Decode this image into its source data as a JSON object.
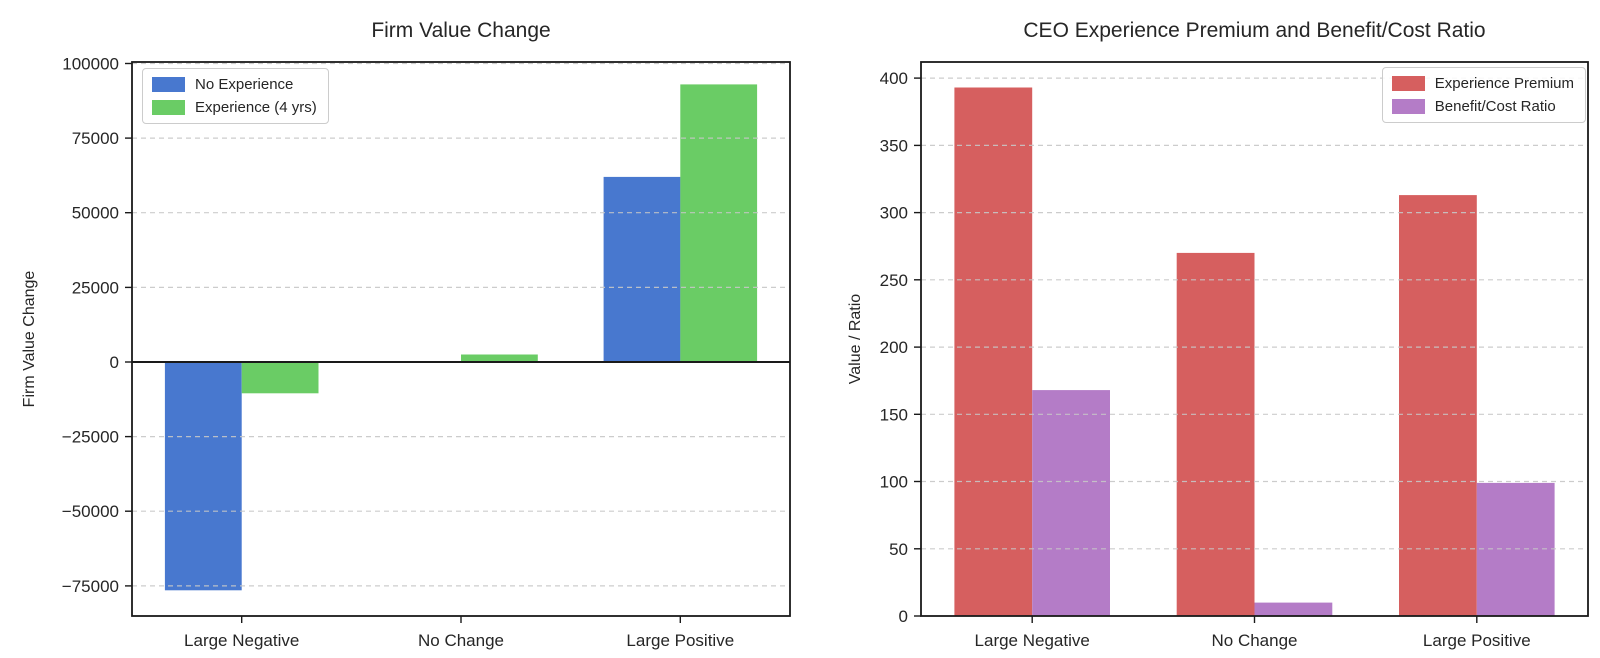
{
  "figure": {
    "background": "#ffffff",
    "text_color": "#262626",
    "spine_color": "#1a1a1a",
    "grid_color": "#c7c7c7"
  },
  "chart_data": [
    {
      "type": "bar",
      "title": "Firm Value Change",
      "xlabel": "",
      "ylabel": "Firm Value Change",
      "categories": [
        "Large Negative",
        "No Change",
        "Large Positive"
      ],
      "series": [
        {
          "name": "No Experience",
          "color": "#4878CF",
          "values": [
            -76500,
            0,
            62000
          ]
        },
        {
          "name": "Experience (4 yrs)",
          "color": "#6ACC65",
          "values": [
            -10500,
            2500,
            93000
          ]
        }
      ],
      "yticks": [
        -75000,
        -50000,
        -25000,
        0,
        25000,
        50000,
        75000,
        100000
      ],
      "ylim": [
        -85100,
        100500
      ],
      "grid": true,
      "grid_style": "dashed",
      "zero_line": true,
      "legend_position": "upper-left",
      "bar_width": 0.35
    },
    {
      "type": "bar",
      "title": "CEO Experience Premium and Benefit/Cost Ratio",
      "xlabel": "",
      "ylabel": "Value / Ratio",
      "categories": [
        "Large Negative",
        "No Change",
        "Large Positive"
      ],
      "series": [
        {
          "name": "Experience Premium",
          "color": "#D65F5F",
          "values": [
            393,
            270,
            313
          ]
        },
        {
          "name": "Benefit/Cost Ratio",
          "color": "#B47CC7",
          "values": [
            168,
            10,
            99
          ]
        }
      ],
      "yticks": [
        0,
        50,
        100,
        150,
        200,
        250,
        300,
        350,
        400
      ],
      "ylim": [
        0,
        412
      ],
      "grid": true,
      "grid_style": "dashed",
      "zero_line": false,
      "legend_position": "upper-right",
      "bar_width": 0.35
    }
  ]
}
